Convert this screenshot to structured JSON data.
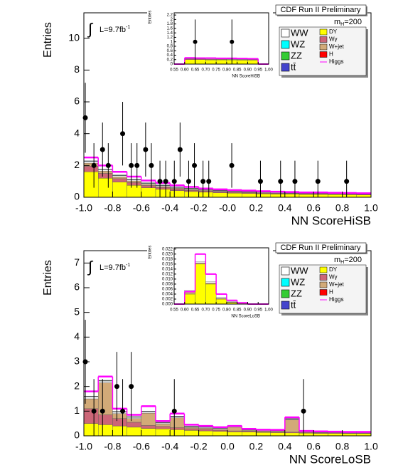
{
  "chart_data": [
    {
      "type": "histogram",
      "title": "CDF Run II Preliminary",
      "mass_label": {
        "symbol": "m",
        "sub": "H",
        "rest": "=200"
      },
      "integral": "∫",
      "lumi": {
        "text": "L=9.7fb",
        "sup": "-1"
      },
      "xlabel": "NN ScoreHiSB",
      "ylabel": "Entries",
      "xlim": [
        -1,
        1
      ],
      "ylim": [
        0,
        11.6
      ],
      "xticks": [
        {
          "value": -1,
          "label": "-1.0"
        },
        -0.8,
        -0.6,
        -0.4,
        -0.2,
        {
          "value": 0,
          "label": "-0.0"
        },
        0.2,
        0.4,
        0.6,
        0.8,
        {
          "value": 1,
          "label": "1.0"
        }
      ],
      "yticks": [
        0,
        2,
        4,
        6,
        8,
        10
      ],
      "bins": [
        -1,
        -0.9,
        -0.8,
        -0.7,
        -0.6,
        -0.5,
        -0.4,
        -0.3,
        -0.2,
        -0.1,
        0,
        0.1,
        0.2,
        0.3,
        0.4,
        0.5,
        0.6,
        0.7,
        0.8,
        0.9,
        1
      ],
      "series": [
        {
          "name": "DY",
          "color": "#ffff00",
          "values": [
            1.6,
            1.2,
            0.95,
            0.75,
            0.6,
            0.5,
            0.42,
            0.36,
            0.32,
            0.28,
            0.26,
            0.24,
            0.22,
            0.2,
            0.2,
            0.18,
            0.18,
            0.17,
            0.16,
            0.15
          ]
        },
        {
          "name": "Wγ",
          "color": "#cc6677",
          "values": [
            0.35,
            0.3,
            0.22,
            0.18,
            0.14,
            0.12,
            0.1,
            0.08,
            0.07,
            0.06,
            0.05,
            0.05,
            0.04,
            0.04,
            0.04,
            0.03,
            0.03,
            0.03,
            0.03,
            0.03
          ]
        },
        {
          "name": "W+jet",
          "color": "#d2aa78",
          "values": [
            0.2,
            0.15,
            0.12,
            0.1,
            0.08,
            0.06,
            0.05,
            0.05,
            0.04,
            0.04,
            0.03,
            0.03,
            0.03,
            0.03,
            0.02,
            0.02,
            0.02,
            0.02,
            0.02,
            0.02
          ]
        },
        {
          "name": "H",
          "color": "#ff0000",
          "values": [
            0,
            0,
            0,
            0,
            0,
            0,
            0,
            0,
            0,
            0,
            0,
            0,
            0,
            0,
            0,
            0,
            0,
            0,
            0,
            0
          ]
        },
        {
          "name": "WW",
          "color": "#ffffff",
          "values": [
            0.1,
            0.08,
            0.07,
            0.06,
            0.05,
            0.05,
            0.04,
            0.04,
            0.04,
            0.03,
            0.03,
            0.03,
            0.03,
            0.03,
            0.02,
            0.02,
            0.02,
            0.02,
            0.02,
            0.02
          ]
        },
        {
          "name": "WZ",
          "color": "#00ffff",
          "values": [
            0.02,
            0.02,
            0.02,
            0.02,
            0.02,
            0.02,
            0.02,
            0.02,
            0.02,
            0.02,
            0.02,
            0.02,
            0.02,
            0.02,
            0.02,
            0.02,
            0.02,
            0.02,
            0.02,
            0.02
          ]
        },
        {
          "name": "ZZ",
          "color": "#33cc33",
          "values": [
            0.01,
            0.01,
            0.01,
            0.01,
            0.01,
            0.01,
            0.01,
            0.01,
            0.01,
            0.01,
            0.01,
            0.01,
            0.01,
            0.01,
            0.01,
            0.01,
            0.01,
            0.01,
            0.01,
            0.01
          ]
        },
        {
          "name": "tt̄",
          "color": "#4444cc",
          "values": [
            0.01,
            0.01,
            0.01,
            0.01,
            0.01,
            0.01,
            0.01,
            0.01,
            0.01,
            0.01,
            0.01,
            0.01,
            0.01,
            0.01,
            0.01,
            0.01,
            0.01,
            0.01,
            0.01,
            0.01
          ]
        },
        {
          "name": "Higgs",
          "color": "#ff00ff",
          "style": "line",
          "values": [
            2.5,
            2.0,
            1.6,
            1.3,
            1.05,
            0.9,
            0.75,
            0.65,
            0.55,
            0.5,
            0.45,
            0.42,
            0.38,
            0.35,
            0.33,
            0.3,
            0.3,
            0.28,
            0.27,
            0.25
          ]
        }
      ],
      "points": {
        "x": [
          -0.99,
          -0.93,
          -0.87,
          -0.83,
          -0.73,
          -0.67,
          -0.63,
          -0.57,
          -0.53,
          -0.47,
          -0.43,
          -0.37,
          -0.33,
          -0.27,
          -0.23,
          -0.17,
          -0.13,
          0.03,
          0.23,
          0.37,
          0.47,
          0.63,
          0.83
        ],
        "y": [
          5,
          2,
          3,
          2,
          4,
          2,
          2,
          3,
          2,
          1,
          1,
          1,
          3,
          1,
          2,
          1,
          1,
          2,
          1,
          1,
          1,
          1,
          1
        ],
        "yerr_low": [
          2.2,
          1.4,
          1.7,
          1.4,
          2,
          1.4,
          1.4,
          1.7,
          1.4,
          1,
          1,
          1,
          1.7,
          1,
          1.4,
          1,
          1,
          1.4,
          1,
          1,
          1,
          1,
          1
        ],
        "yerr_high": [
          2.2,
          1.4,
          1.7,
          1.4,
          2,
          1.4,
          1.4,
          1.7,
          1.4,
          1.3,
          1.3,
          1.3,
          1.7,
          1.3,
          1.4,
          1.3,
          1.3,
          1.4,
          1.3,
          1.3,
          1.3,
          1.3,
          1.3
        ]
      }
    },
    {
      "type": "histogram",
      "xlabel": "NN ScoreHiSB",
      "ylabel": "Entries",
      "xlim": [
        0.55,
        1
      ],
      "ylim": [
        0,
        2.3
      ],
      "xticks": [
        0.55,
        {
          "value": 0.6,
          "label": "0.60"
        },
        0.65,
        {
          "value": 0.7,
          "label": "0.70"
        },
        0.75,
        {
          "value": 0.8,
          "label": "0.80"
        },
        0.85,
        {
          "value": 0.9,
          "label": "0.90"
        },
        0.95,
        {
          "value": 1,
          "label": "1.00"
        }
      ],
      "yticks": [
        0,
        0.2,
        0.4,
        0.6,
        0.8,
        1,
        1.2,
        1.4,
        1.6,
        1.8,
        2,
        2.2
      ],
      "bins": [
        0.55,
        0.6,
        0.65,
        0.7,
        0.75,
        0.8,
        0.85,
        0.9,
        0.95,
        1
      ],
      "series": [
        {
          "color": "#ffff00",
          "values": [
            0,
            0.2,
            0.2,
            0.19,
            0.19,
            0.19,
            0.18,
            0.18,
            0
          ]
        },
        {
          "color": "#cc6677",
          "values": [
            0,
            0.03,
            0.03,
            0.03,
            0.03,
            0.02,
            0.02,
            0.02,
            0
          ]
        },
        {
          "color": "#ffffff",
          "values": [
            0,
            0.02,
            0.02,
            0.02,
            0.02,
            0.02,
            0.02,
            0.02,
            0
          ]
        },
        {
          "color": "#ff00ff",
          "style": "line",
          "values": [
            0,
            0.28,
            0.27,
            0.27,
            0.26,
            0.26,
            0.25,
            0.24,
            0
          ]
        }
      ],
      "points": {
        "x": [
          0.65,
          0.825
        ],
        "y": [
          1,
          1
        ],
        "yerr_low": [
          1,
          1
        ],
        "yerr_high": [
          1,
          1
        ]
      }
    },
    {
      "type": "histogram",
      "title": "CDF Run II Preliminary",
      "mass_label": {
        "symbol": "m",
        "sub": "H",
        "rest": "=200"
      },
      "integral": "∫",
      "lumi": {
        "text": "L=9.7fb",
        "sup": "-1"
      },
      "xlabel": "NN ScoreLoSB",
      "ylabel": "Entries",
      "xlim": [
        -1,
        1
      ],
      "ylim": [
        0,
        7.5
      ],
      "xticks": [
        {
          "value": -1,
          "label": "-1.0"
        },
        -0.8,
        -0.6,
        -0.4,
        -0.2,
        {
          "value": 0,
          "label": "0.0"
        },
        0.2,
        0.4,
        0.6,
        0.8,
        {
          "value": 1,
          "label": "1.0"
        }
      ],
      "yticks": [
        0,
        1,
        2,
        3,
        4,
        5,
        6,
        7
      ],
      "bins": [
        -1,
        -0.9,
        -0.8,
        -0.7,
        -0.6,
        -0.5,
        -0.4,
        -0.3,
        -0.2,
        -0.1,
        0,
        0.1,
        0.2,
        0.3,
        0.4,
        0.5,
        0.6,
        0.7,
        0.8,
        0.9,
        1
      ],
      "series": [
        {
          "name": "DY",
          "color": "#ffff00",
          "values": [
            0.5,
            0.45,
            0.4,
            0.35,
            0.3,
            0.28,
            0.25,
            0.22,
            0.2,
            0.18,
            0.16,
            0.15,
            0.14,
            0.13,
            0.12,
            0.11,
            0.1,
            0.1,
            0.09,
            0.09
          ]
        },
        {
          "name": "Wγ",
          "color": "#cc6677",
          "values": [
            0.6,
            0.4,
            0.3,
            0.2,
            0.12,
            0.1,
            0.08,
            0.07,
            0.06,
            0.05,
            0.04,
            0.04,
            0.03,
            0.03,
            0.03,
            0.03,
            0.02,
            0.02,
            0.02,
            0.02
          ]
        },
        {
          "name": "W+jet",
          "color": "#d2aa78",
          "values": [
            0.4,
            1.3,
            0.2,
            0.15,
            0.5,
            0.1,
            0.4,
            0.05,
            0.05,
            0.04,
            0.15,
            0.03,
            0.03,
            0.03,
            0.5,
            0.02,
            0.02,
            0.02,
            0.02,
            0.02
          ]
        },
        {
          "name": "H",
          "color": "#ff0000",
          "values": [
            0,
            0,
            0,
            0,
            0,
            0,
            0,
            0,
            0,
            0,
            0,
            0,
            0,
            0,
            0,
            0,
            0,
            0,
            0,
            0
          ]
        },
        {
          "name": "WW",
          "color": "#ffffff",
          "values": [
            0.08,
            0.07,
            0.06,
            0.05,
            0.05,
            0.04,
            0.04,
            0.03,
            0.03,
            0.03,
            0.03,
            0.02,
            0.02,
            0.02,
            0.02,
            0.02,
            0.02,
            0.02,
            0.02,
            0.02
          ]
        },
        {
          "name": "WZ",
          "color": "#00ffff",
          "values": [
            0.01,
            0.01,
            0.01,
            0.01,
            0.01,
            0.01,
            0.01,
            0.01,
            0.01,
            0.01,
            0.01,
            0.01,
            0.01,
            0.01,
            0.01,
            0.01,
            0.01,
            0.01,
            0.01,
            0.01
          ]
        },
        {
          "name": "ZZ",
          "color": "#33cc33",
          "values": [
            0.01,
            0.01,
            0.01,
            0.01,
            0.01,
            0.01,
            0.01,
            0.01,
            0.01,
            0.01,
            0.01,
            0.01,
            0.01,
            0.01,
            0.01,
            0.01,
            0.01,
            0.01,
            0.01,
            0.01
          ]
        },
        {
          "name": "tt̄",
          "color": "#4444cc",
          "values": [
            0.01,
            0.01,
            0.01,
            0.01,
            0.01,
            0.01,
            0.01,
            0.01,
            0.01,
            0.01,
            0.01,
            0.01,
            0.01,
            0.01,
            0.01,
            0.01,
            0.01,
            0.01,
            0.01,
            0.01
          ]
        },
        {
          "name": "Higgs",
          "color": "#ff00ff",
          "style": "line",
          "values": [
            1.8,
            2.4,
            1.1,
            0.85,
            1.2,
            0.6,
            0.9,
            0.45,
            0.4,
            0.35,
            0.4,
            0.28,
            0.25,
            0.24,
            0.75,
            0.2,
            0.18,
            0.17,
            0.16,
            0.16
          ]
        }
      ],
      "points": {
        "x": [
          -0.99,
          -0.93,
          -0.87,
          -0.77,
          -0.73,
          -0.67,
          -0.37,
          0.53
        ],
        "y": [
          3,
          1,
          1,
          2,
          1,
          2,
          1,
          1
        ],
        "yerr_low": [
          1.7,
          1,
          1,
          1.4,
          1,
          1.4,
          1,
          1
        ],
        "yerr_high": [
          1.7,
          1.3,
          1.3,
          1.4,
          1.3,
          1.4,
          1.3,
          1.3
        ]
      }
    },
    {
      "type": "histogram",
      "xlabel": "NN ScoreLoSB",
      "ylabel": "Entries",
      "xlim": [
        0.55,
        1
      ],
      "ylim": [
        0,
        0.0225
      ],
      "xticks": [
        0.55,
        {
          "value": 0.6,
          "label": "0.60"
        },
        0.65,
        {
          "value": 0.7,
          "label": "0.70"
        },
        0.75,
        {
          "value": 0.8,
          "label": "0.80"
        },
        0.85,
        {
          "value": 0.9,
          "label": "0.90"
        },
        0.95,
        {
          "value": 1,
          "label": "1.00"
        }
      ],
      "yticks": [
        {
          "value": 0,
          "label": "0.000"
        },
        {
          "value": 0.002,
          "label": "0.002"
        },
        {
          "value": 0.004,
          "label": "0.004"
        },
        {
          "value": 0.006,
          "label": "0.006"
        },
        {
          "value": 0.008,
          "label": "0.008"
        },
        {
          "value": 0.01,
          "label": "0.010"
        },
        {
          "value": 0.012,
          "label": "0.012"
        },
        {
          "value": 0.014,
          "label": "0.014"
        },
        {
          "value": 0.016,
          "label": "0.016"
        },
        {
          "value": 0.018,
          "label": "0.018"
        },
        {
          "value": 0.02,
          "label": "0.020"
        },
        {
          "value": 0.022,
          "label": "0.022"
        }
      ],
      "bins": [
        0.55,
        0.6,
        0.65,
        0.7,
        0.75,
        0.8,
        0.85,
        0.9,
        0.95,
        1
      ],
      "series": [
        {
          "color": "#ffff00",
          "values": [
            0,
            0.004,
            0.016,
            0.008,
            0.002,
            0.0006,
            0.0003,
            0,
            0
          ]
        },
        {
          "color": "#d2aa78",
          "values": [
            0,
            0.001,
            0.0005,
            0.0005,
            0.0003,
            0.0002,
            0.0001,
            0,
            0
          ]
        },
        {
          "color": "#ffffff",
          "values": [
            0,
            0.0006,
            0.0005,
            0.0004,
            0.0003,
            0.0002,
            0.0001,
            0,
            0
          ]
        },
        {
          "color": "#ff00ff",
          "style": "line",
          "values": [
            0,
            0.005,
            0.02,
            0.012,
            0.004,
            0.0015,
            0.0005,
            0,
            0
          ]
        }
      ]
    }
  ]
}
